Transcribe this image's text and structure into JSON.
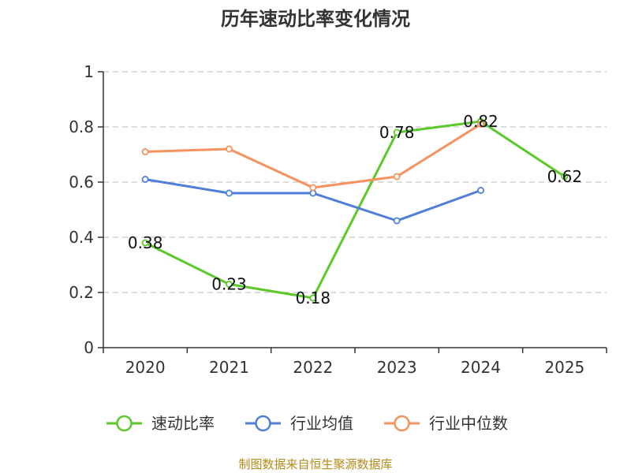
{
  "title": "历年速动比率变化情况",
  "source": "制图数据来自恒生聚源数据库",
  "chart_data": {
    "type": "line",
    "title": "历年速动比率变化情况",
    "xlabel": "",
    "ylabel": "",
    "categories": [
      "2020",
      "2021",
      "2022",
      "2023",
      "2024",
      "2025"
    ],
    "ylim": [
      0,
      1
    ],
    "yticks": [
      0,
      0.2,
      0.4,
      0.6,
      0.8,
      1
    ],
    "ytick_labels": [
      "0",
      "0.2",
      "0.4",
      "0.6",
      "0.8",
      "1"
    ],
    "grid": true,
    "legend_position": "bottom",
    "series": [
      {
        "name": "速动比率",
        "color": "#5cc92a",
        "values": [
          0.38,
          0.23,
          0.18,
          0.78,
          0.82,
          0.62
        ],
        "labels": [
          "0.38",
          "0.23",
          "0.18",
          "0.78",
          "0.82",
          "0.62"
        ],
        "show_labels": true
      },
      {
        "name": "行业均值",
        "color": "#4f7fdb",
        "values": [
          0.61,
          0.56,
          0.56,
          0.46,
          0.57,
          null
        ],
        "show_labels": false
      },
      {
        "name": "行业中位数",
        "color": "#f5925e",
        "values": [
          0.71,
          0.72,
          0.58,
          0.62,
          0.81,
          null
        ],
        "show_labels": false
      }
    ]
  }
}
